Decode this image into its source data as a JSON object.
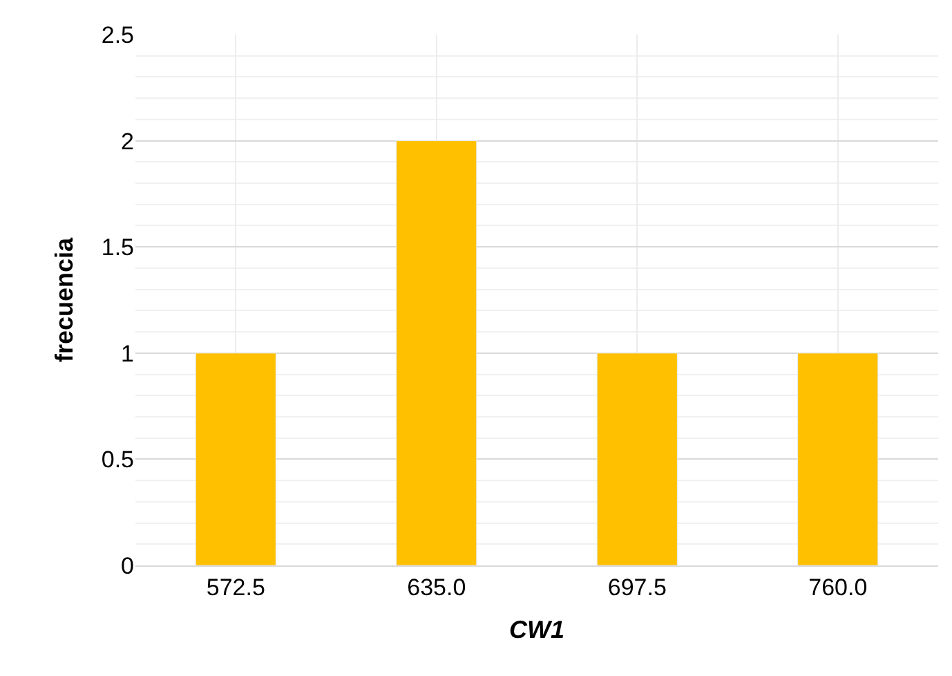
{
  "chart_data": {
    "type": "bar",
    "xlabel": "CW1",
    "ylabel": "frecuencia",
    "categories": [
      "572.5",
      "635.0",
      "697.5",
      "760.0"
    ],
    "values": [
      1,
      2,
      1,
      1
    ],
    "color": "#ffc000",
    "ylim": [
      0,
      2.5
    ],
    "yticks": [
      {
        "value": 0,
        "label": "0"
      },
      {
        "value": 0.5,
        "label": "0.5"
      },
      {
        "value": 1,
        "label": "1"
      },
      {
        "value": 1.5,
        "label": "1.5"
      },
      {
        "value": 2,
        "label": "2"
      },
      {
        "value": 2.5,
        "label": "2.5"
      }
    ],
    "grid": true
  }
}
